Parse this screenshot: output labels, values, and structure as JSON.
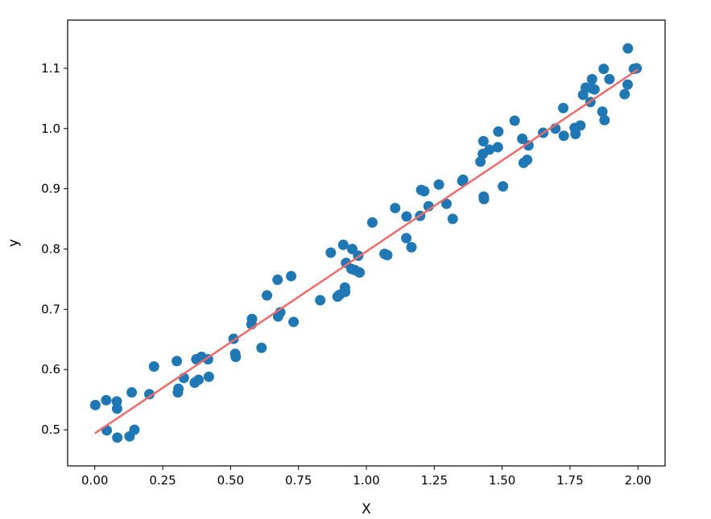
{
  "chart_data": {
    "type": "scatter",
    "xlabel": "X",
    "ylabel": "y",
    "xlim": [
      -0.1,
      2.1
    ],
    "ylim": [
      0.44,
      1.18
    ],
    "x_ticks": [
      0.0,
      0.25,
      0.5,
      0.75,
      1.0,
      1.25,
      1.5,
      1.75,
      2.0
    ],
    "x_tick_labels": [
      "0.00",
      "0.25",
      "0.50",
      "0.75",
      "1.00",
      "1.25",
      "1.50",
      "1.75",
      "2.00"
    ],
    "y_ticks": [
      0.5,
      0.6,
      0.7,
      0.8,
      0.9,
      1.0,
      1.1
    ],
    "y_tick_labels": [
      "0.5",
      "0.6",
      "0.7",
      "0.8",
      "0.9",
      "1.0",
      "1.1"
    ],
    "grid": false,
    "legend": "none",
    "colors": {
      "points": "#1f77b4",
      "fit_line": "#ef6a6a"
    },
    "series": [
      {
        "kind": "points",
        "points": [
          [
            0.002,
            0.541
          ],
          [
            0.042,
            0.549
          ],
          [
            0.044,
            0.499
          ],
          [
            0.081,
            0.547
          ],
          [
            0.082,
            0.535
          ],
          [
            0.083,
            0.487
          ],
          [
            0.128,
            0.489
          ],
          [
            0.136,
            0.562
          ],
          [
            0.146,
            0.5
          ],
          [
            0.201,
            0.559
          ],
          [
            0.218,
            0.605
          ],
          [
            0.302,
            0.614
          ],
          [
            0.306,
            0.562
          ],
          [
            0.308,
            0.568
          ],
          [
            0.328,
            0.586
          ],
          [
            0.368,
            0.578
          ],
          [
            0.374,
            0.617
          ],
          [
            0.382,
            0.583
          ],
          [
            0.393,
            0.621
          ],
          [
            0.417,
            0.617
          ],
          [
            0.42,
            0.588
          ],
          [
            0.511,
            0.651
          ],
          [
            0.517,
            0.626
          ],
          [
            0.519,
            0.621
          ],
          [
            0.577,
            0.675
          ],
          [
            0.579,
            0.684
          ],
          [
            0.614,
            0.636
          ],
          [
            0.634,
            0.723
          ],
          [
            0.673,
            0.749
          ],
          [
            0.675,
            0.688
          ],
          [
            0.683,
            0.695
          ],
          [
            0.723,
            0.755
          ],
          [
            0.732,
            0.679
          ],
          [
            0.83,
            0.715
          ],
          [
            0.869,
            0.794
          ],
          [
            0.894,
            0.721
          ],
          [
            0.901,
            0.724
          ],
          [
            0.915,
            0.807
          ],
          [
            0.921,
            0.736
          ],
          [
            0.922,
            0.729
          ],
          [
            0.925,
            0.777
          ],
          [
            0.945,
            0.767
          ],
          [
            0.948,
            0.8
          ],
          [
            0.958,
            0.765
          ],
          [
            0.97,
            0.789
          ],
          [
            0.975,
            0.761
          ],
          [
            1.022,
            0.844
          ],
          [
            1.067,
            0.792
          ],
          [
            1.077,
            0.79
          ],
          [
            1.106,
            0.868
          ],
          [
            1.147,
            0.818
          ],
          [
            1.148,
            0.854
          ],
          [
            1.166,
            0.803
          ],
          [
            1.198,
            0.855
          ],
          [
            1.202,
            0.898
          ],
          [
            1.213,
            0.896
          ],
          [
            1.229,
            0.871
          ],
          [
            1.267,
            0.907
          ],
          [
            1.295,
            0.875
          ],
          [
            1.318,
            0.85
          ],
          [
            1.353,
            0.913
          ],
          [
            1.356,
            0.915
          ],
          [
            1.42,
            0.945
          ],
          [
            1.429,
            0.958
          ],
          [
            1.431,
            0.979
          ],
          [
            1.432,
            0.887
          ],
          [
            1.433,
            0.883
          ],
          [
            1.453,
            0.965
          ],
          [
            1.484,
            0.969
          ],
          [
            1.486,
            0.995
          ],
          [
            1.503,
            0.904
          ],
          [
            1.546,
            1.013
          ],
          [
            1.574,
            0.983
          ],
          [
            1.579,
            0.943
          ],
          [
            1.592,
            0.948
          ],
          [
            1.597,
            0.972
          ],
          [
            1.651,
            0.993
          ],
          [
            1.696,
            1.0
          ],
          [
            1.725,
            1.034
          ],
          [
            1.727,
            0.988
          ],
          [
            1.767,
            1.001
          ],
          [
            1.77,
            0.991
          ],
          [
            1.788,
            1.005
          ],
          [
            1.798,
            1.056
          ],
          [
            1.808,
            1.068
          ],
          [
            1.825,
            1.044
          ],
          [
            1.829,
            1.067
          ],
          [
            1.831,
            1.082
          ],
          [
            1.84,
            1.065
          ],
          [
            1.869,
            1.028
          ],
          [
            1.874,
            1.099
          ],
          [
            1.877,
            1.014
          ],
          [
            1.895,
            1.082
          ],
          [
            1.951,
            1.057
          ],
          [
            1.962,
            1.073
          ],
          [
            1.963,
            1.133
          ],
          [
            1.985,
            1.099
          ],
          [
            1.995,
            1.1
          ]
        ]
      },
      {
        "kind": "line",
        "x": [
          0.0,
          2.0
        ],
        "y": [
          0.494,
          1.098
        ]
      }
    ]
  }
}
